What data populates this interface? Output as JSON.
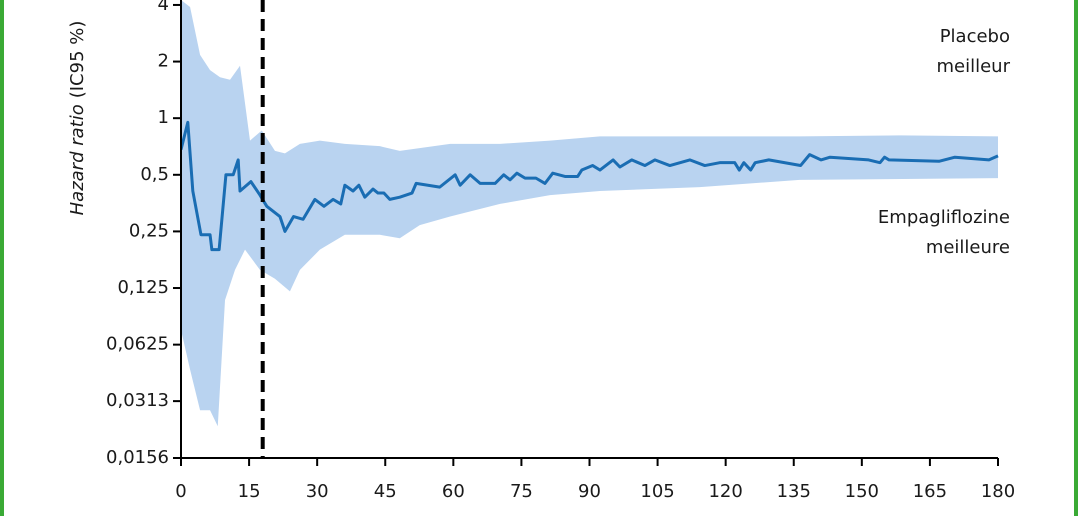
{
  "chart_data": {
    "type": "line",
    "y_label_italic": "Hazard ratio",
    "y_label": "(IC95 %)",
    "annotations": [
      [
        "Placebo",
        "meilleur"
      ],
      [
        "Empagliflozine",
        "meilleure"
      ]
    ],
    "xlim": [
      0,
      180
    ],
    "xticks": [
      0,
      15,
      30,
      45,
      60,
      75,
      90,
      105,
      120,
      135,
      150,
      165,
      180
    ],
    "ylim": [
      0.0156,
      4.25
    ],
    "ylog": true,
    "yticks": [
      4,
      2,
      1,
      {
        "value": 0.5,
        "label": "0,5"
      },
      {
        "value": 0.25,
        "label": "0,25"
      },
      {
        "value": 0.125,
        "label": "0,125"
      },
      {
        "value": 0.0625,
        "label": "0,0625"
      },
      {
        "value": 0.0313,
        "label": "0,0313"
      },
      {
        "value": 0.0156,
        "label": "0,0156"
      }
    ],
    "reference_x": 18,
    "color": "#1a6db3",
    "band_color": "#b9d3f0",
    "x": [
      0,
      1.5,
      2.6,
      4.4,
      6.4,
      6.8,
      8.4,
      9.9,
      11.5,
      12.6,
      13,
      15.4,
      17.4,
      18.9,
      21.8,
      22.9,
      24.8,
      26.9,
      29.5,
      31.5,
      33.5,
      35.2,
      36.1,
      37.9,
      39.2,
      40.5,
      42.3,
      43.4,
      44.7,
      46,
      48.2,
      50.9,
      51.8,
      57,
      60.4,
      61.5,
      63.7,
      65.9,
      69.2,
      71.1,
      72.5,
      74,
      75.8,
      78.2,
      80.2,
      81.9,
      84.6,
      87.4,
      88.3,
      90.7,
      92.3,
      95.2,
      96.7,
      99.3,
      102.2,
      104.4,
      107.7,
      112.1,
      115.4,
      118.7,
      122,
      123,
      124,
      125.5,
      126.5,
      129.5,
      136.5,
      138.5,
      141,
      143,
      151.5,
      154,
      155,
      156,
      167,
      170.5,
      178,
      180
    ],
    "values": [
      0.68,
      0.95,
      0.41,
      0.24,
      0.24,
      0.2,
      0.2,
      0.5,
      0.5,
      0.6,
      0.41,
      0.46,
      0.39,
      0.34,
      0.3,
      0.25,
      0.3,
      0.29,
      0.37,
      0.34,
      0.37,
      0.35,
      0.44,
      0.41,
      0.44,
      0.38,
      0.42,
      0.4,
      0.4,
      0.37,
      0.38,
      0.4,
      0.45,
      0.43,
      0.5,
      0.44,
      0.5,
      0.45,
      0.45,
      0.5,
      0.47,
      0.51,
      0.48,
      0.48,
      0.45,
      0.51,
      0.49,
      0.49,
      0.53,
      0.56,
      0.53,
      0.6,
      0.55,
      0.6,
      0.56,
      0.6,
      0.56,
      0.6,
      0.56,
      0.58,
      0.58,
      0.53,
      0.58,
      0.53,
      0.58,
      0.6,
      0.56,
      0.64,
      0.6,
      0.62,
      0.6,
      0.58,
      0.62,
      0.6,
      0.59,
      0.62,
      0.6,
      0.63
    ],
    "ci_upper": {
      "x": [
        0,
        2,
        4.2,
        6.4,
        8.6,
        10.8,
        13,
        15.2,
        17.8,
        20.7,
        22.9,
        26.2,
        30.6,
        36.1,
        43.8,
        48.2,
        59.3,
        70.3,
        81.3,
        92.3,
        103.3,
        114.3,
        136.3,
        158.4,
        180
      ],
      "values": [
        4.25,
        3.9,
        2.17,
        1.8,
        1.65,
        1.6,
        1.9,
        0.76,
        0.86,
        0.67,
        0.65,
        0.73,
        0.76,
        0.73,
        0.71,
        0.67,
        0.73,
        0.73,
        0.76,
        0.8,
        0.8,
        0.8,
        0.8,
        0.81,
        0.8
      ]
    },
    "ci_lower": {
      "x": [
        0,
        2,
        4.2,
        6.4,
        8.1,
        9.7,
        11.9,
        14.1,
        17.4,
        20.7,
        24,
        26.2,
        30.6,
        36.1,
        43.8,
        48.2,
        52.6,
        59.3,
        70.3,
        81.3,
        92.3,
        114.3,
        136.3,
        180
      ],
      "values": [
        0.075,
        0.046,
        0.028,
        0.028,
        0.023,
        0.108,
        0.156,
        0.2,
        0.156,
        0.14,
        0.12,
        0.156,
        0.2,
        0.24,
        0.24,
        0.23,
        0.27,
        0.3,
        0.35,
        0.39,
        0.41,
        0.43,
        0.47,
        0.48
      ]
    }
  }
}
